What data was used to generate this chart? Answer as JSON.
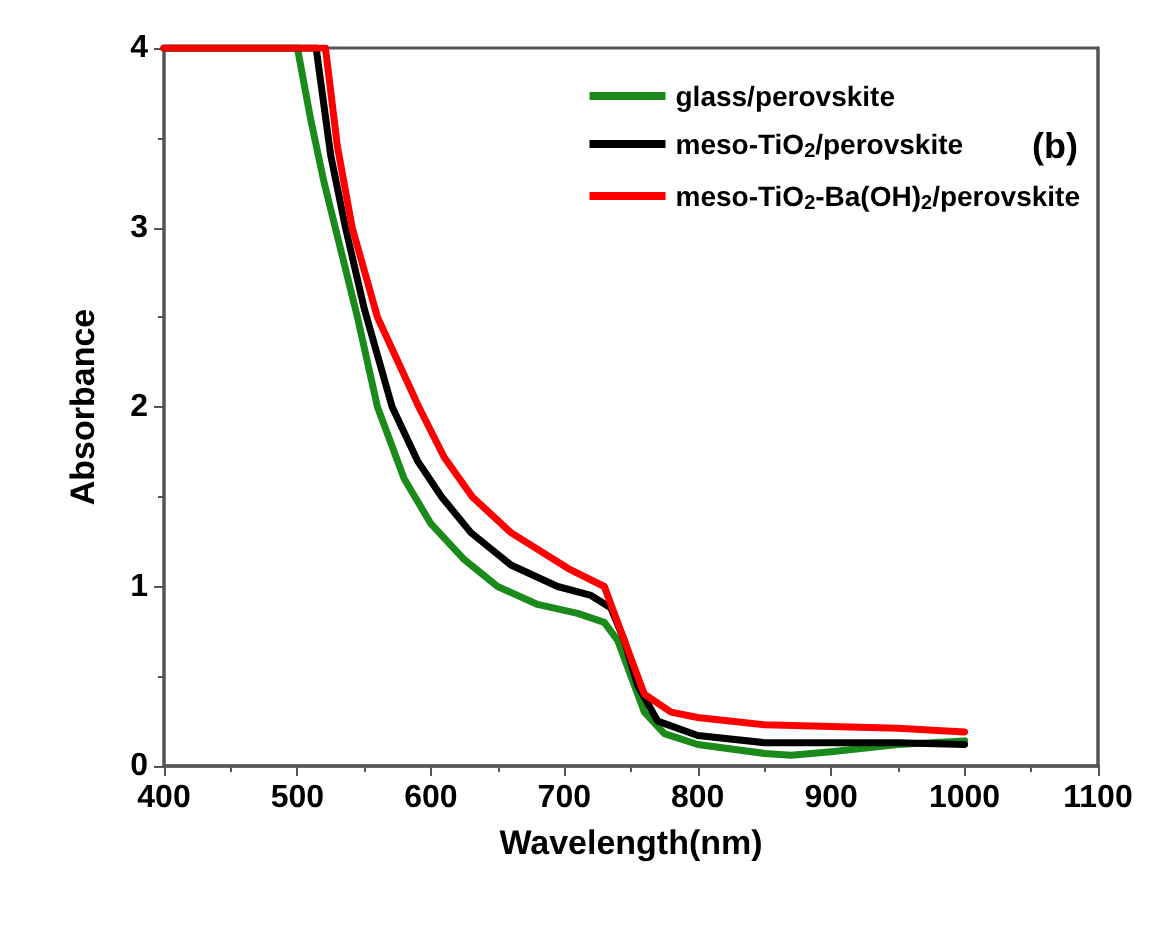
{
  "chart_data": {
    "type": "line",
    "xlabel": "Wavelength(nm)",
    "ylabel": "Absorbance",
    "annotations": [
      "(b)"
    ],
    "xlim": [
      400,
      1100
    ],
    "xticks": [
      400,
      500,
      600,
      700,
      800,
      900,
      1000,
      1100
    ],
    "ylim": [
      0,
      4
    ],
    "yticks": [
      0,
      1,
      2,
      3,
      4
    ],
    "grid": false,
    "legend": "top right",
    "marker": "none",
    "line_style": "solid",
    "series": [
      {
        "name": "glass/perovskite",
        "color": "#1a8a1a",
        "x": [
          400,
          500,
          510,
          520,
          530,
          545,
          560,
          580,
          600,
          625,
          650,
          680,
          710,
          730,
          740,
          750,
          760,
          775,
          800,
          850,
          870,
          900,
          950,
          1000
        ],
        "values": [
          4,
          4,
          3.6,
          3.25,
          2.95,
          2.5,
          2.0,
          1.6,
          1.35,
          1.15,
          1.0,
          0.9,
          0.85,
          0.8,
          0.7,
          0.5,
          0.3,
          0.18,
          0.12,
          0.07,
          0.06,
          0.08,
          0.12,
          0.14
        ]
      },
      {
        "name": "meso-TiO$_{2}$/perovskite",
        "color": "#000000",
        "x": [
          400,
          514,
          525,
          536,
          550,
          571,
          590,
          608,
          630,
          660,
          695,
          720,
          735,
          745,
          755,
          770,
          800,
          850,
          900,
          950,
          1000
        ],
        "values": [
          4,
          4,
          3.4,
          3.0,
          2.55,
          2.0,
          1.7,
          1.5,
          1.3,
          1.12,
          1.0,
          0.95,
          0.88,
          0.7,
          0.45,
          0.25,
          0.17,
          0.13,
          0.13,
          0.13,
          0.12
        ]
      },
      {
        "name": "meso-TiO$_{2}$-Ba(OH)$_{2}$/perovskite",
        "color": "#ff0000",
        "x": [
          400,
          521,
          530,
          541,
          560,
          591,
          610,
          631,
          660,
          703,
          730,
          745,
          760,
          780,
          800,
          850,
          900,
          950,
          1000
        ],
        "values": [
          4,
          4,
          3.45,
          3.0,
          2.5,
          2.0,
          1.72,
          1.5,
          1.3,
          1.1,
          1.0,
          0.7,
          0.4,
          0.3,
          0.27,
          0.23,
          0.22,
          0.21,
          0.19
        ]
      }
    ]
  }
}
